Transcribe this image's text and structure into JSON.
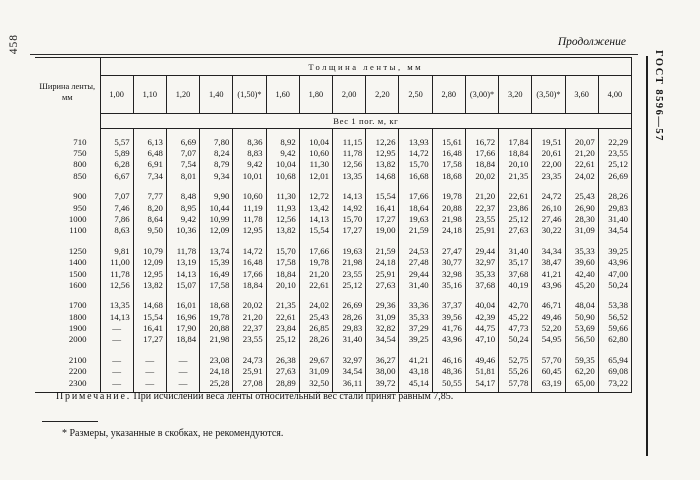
{
  "page": {
    "page_number": "458",
    "continuation_label": "Продолжение",
    "standard_label": "ГОСТ 8596—57"
  },
  "table": {
    "width_header": "Ширина ленты, мм",
    "thickness_header": "Толщина ленты, мм",
    "weight_header": "Вес 1 пог. м, кг",
    "thickness_columns": [
      "1,00",
      "1,10",
      "1,20",
      "1,40",
      "(1,50)*",
      "1,60",
      "1,80",
      "2,00",
      "2,20",
      "2,50",
      "2,80",
      "(3,00)*",
      "3,20",
      "(3,50)*",
      "3,60",
      "4,00"
    ],
    "row_groups": [
      [
        {
          "width": "710",
          "values": [
            "5,57",
            "6,13",
            "6,69",
            "7,80",
            "8,36",
            "8,92",
            "10,04",
            "11,15",
            "12,26",
            "13,93",
            "15,61",
            "16,72",
            "17,84",
            "19,51",
            "20,07",
            "22,29"
          ]
        },
        {
          "width": "750",
          "values": [
            "5,89",
            "6,48",
            "7,07",
            "8,24",
            "8,83",
            "9,42",
            "10,60",
            "11,78",
            "12,95",
            "14,72",
            "16,48",
            "17,66",
            "18,84",
            "20,61",
            "21,20",
            "23,55"
          ]
        },
        {
          "width": "800",
          "values": [
            "6,28",
            "6,91",
            "7,54",
            "8,79",
            "9,42",
            "10,04",
            "11,30",
            "12,56",
            "13,82",
            "15,70",
            "17,58",
            "18,84",
            "20,10",
            "22,00",
            "22,61",
            "25,12"
          ]
        },
        {
          "width": "850",
          "values": [
            "6,67",
            "7,34",
            "8,01",
            "9,34",
            "10,01",
            "10,68",
            "12,01",
            "13,35",
            "14,68",
            "16,68",
            "18,68",
            "20,02",
            "21,35",
            "23,35",
            "24,02",
            "26,69"
          ]
        }
      ],
      [
        {
          "width": "900",
          "values": [
            "7,07",
            "7,77",
            "8,48",
            "9,90",
            "10,60",
            "11,30",
            "12,72",
            "14,13",
            "15,54",
            "17,66",
            "19,78",
            "21,20",
            "22,61",
            "24,72",
            "25,43",
            "28,26"
          ]
        },
        {
          "width": "950",
          "values": [
            "7,46",
            "8,20",
            "8,95",
            "10,44",
            "11,19",
            "11,93",
            "13,42",
            "14,92",
            "16,41",
            "18,64",
            "20,88",
            "22,37",
            "23,86",
            "26,10",
            "26,90",
            "29,83"
          ]
        },
        {
          "width": "1000",
          "values": [
            "7,86",
            "8,64",
            "9,42",
            "10,99",
            "11,78",
            "12,56",
            "14,13",
            "15,70",
            "17,27",
            "19,63",
            "21,98",
            "23,55",
            "25,12",
            "27,46",
            "28,30",
            "31,40"
          ]
        },
        {
          "width": "1100",
          "values": [
            "8,63",
            "9,50",
            "10,36",
            "12,09",
            "12,95",
            "13,82",
            "15,54",
            "17,27",
            "19,00",
            "21,59",
            "24,18",
            "25,91",
            "27,63",
            "30,22",
            "31,09",
            "34,54"
          ]
        }
      ],
      [
        {
          "width": "1250",
          "values": [
            "9,81",
            "10,79",
            "11,78",
            "13,74",
            "14,72",
            "15,70",
            "17,66",
            "19,63",
            "21,59",
            "24,53",
            "27,47",
            "29,44",
            "31,40",
            "34,34",
            "35,33",
            "39,25"
          ]
        },
        {
          "width": "1400",
          "values": [
            "11,00",
            "12,09",
            "13,19",
            "15,39",
            "16,48",
            "17,58",
            "19,78",
            "21,98",
            "24,18",
            "27,48",
            "30,77",
            "32,97",
            "35,17",
            "38,47",
            "39,60",
            "43,96"
          ]
        },
        {
          "width": "1500",
          "values": [
            "11,78",
            "12,95",
            "14,13",
            "16,49",
            "17,66",
            "18,84",
            "21,20",
            "23,55",
            "25,91",
            "29,44",
            "32,98",
            "35,33",
            "37,68",
            "41,21",
            "42,40",
            "47,00"
          ]
        },
        {
          "width": "1600",
          "values": [
            "12,56",
            "13,82",
            "15,07",
            "17,58",
            "18,84",
            "20,10",
            "22,61",
            "25,12",
            "27,63",
            "31,40",
            "35,16",
            "37,68",
            "40,19",
            "43,96",
            "45,20",
            "50,24"
          ]
        }
      ],
      [
        {
          "width": "1700",
          "values": [
            "13,35",
            "14,68",
            "16,01",
            "18,68",
            "20,02",
            "21,35",
            "24,02",
            "26,69",
            "29,36",
            "33,36",
            "37,37",
            "40,04",
            "42,70",
            "46,71",
            "48,04",
            "53,38"
          ]
        },
        {
          "width": "1800",
          "values": [
            "14,13",
            "15,54",
            "16,96",
            "19,78",
            "21,20",
            "22,61",
            "25,43",
            "28,26",
            "31,09",
            "35,33",
            "39,56",
            "42,39",
            "45,22",
            "49,46",
            "50,90",
            "56,52"
          ]
        },
        {
          "width": "1900",
          "values": [
            "—",
            "16,41",
            "17,90",
            "20,88",
            "22,37",
            "23,84",
            "26,85",
            "29,83",
            "32,82",
            "37,29",
            "41,76",
            "44,75",
            "47,73",
            "52,20",
            "53,69",
            "59,66"
          ]
        },
        {
          "width": "2000",
          "values": [
            "—",
            "17,27",
            "18,84",
            "21,98",
            "23,55",
            "25,12",
            "28,26",
            "31,40",
            "34,54",
            "39,25",
            "43,96",
            "47,10",
            "50,24",
            "54,95",
            "56,50",
            "62,80"
          ]
        }
      ],
      [
        {
          "width": "2100",
          "values": [
            "—",
            "—",
            "—",
            "23,08",
            "24,73",
            "26,38",
            "29,67",
            "32,97",
            "36,27",
            "41,21",
            "46,16",
            "49,46",
            "52,75",
            "57,70",
            "59,35",
            "65,94"
          ]
        },
        {
          "width": "2200",
          "values": [
            "—",
            "—",
            "—",
            "24,18",
            "25,91",
            "27,63",
            "31,09",
            "34,54",
            "38,00",
            "43,18",
            "48,36",
            "51,81",
            "55,26",
            "60,45",
            "62,20",
            "69,08"
          ]
        },
        {
          "width": "2300",
          "values": [
            "—",
            "—",
            "—",
            "25,28",
            "27,08",
            "28,89",
            "32,50",
            "36,11",
            "39,72",
            "45,14",
            "50,55",
            "54,17",
            "57,78",
            "63,19",
            "65,00",
            "73,22"
          ]
        }
      ]
    ]
  },
  "note": {
    "label": "Примечание.",
    "text": " При исчислении веса ленты относительный вес стали принят равным 7,85."
  },
  "footnote": {
    "text": "* Размеры, указанные в скобках, не рекомендуются."
  }
}
